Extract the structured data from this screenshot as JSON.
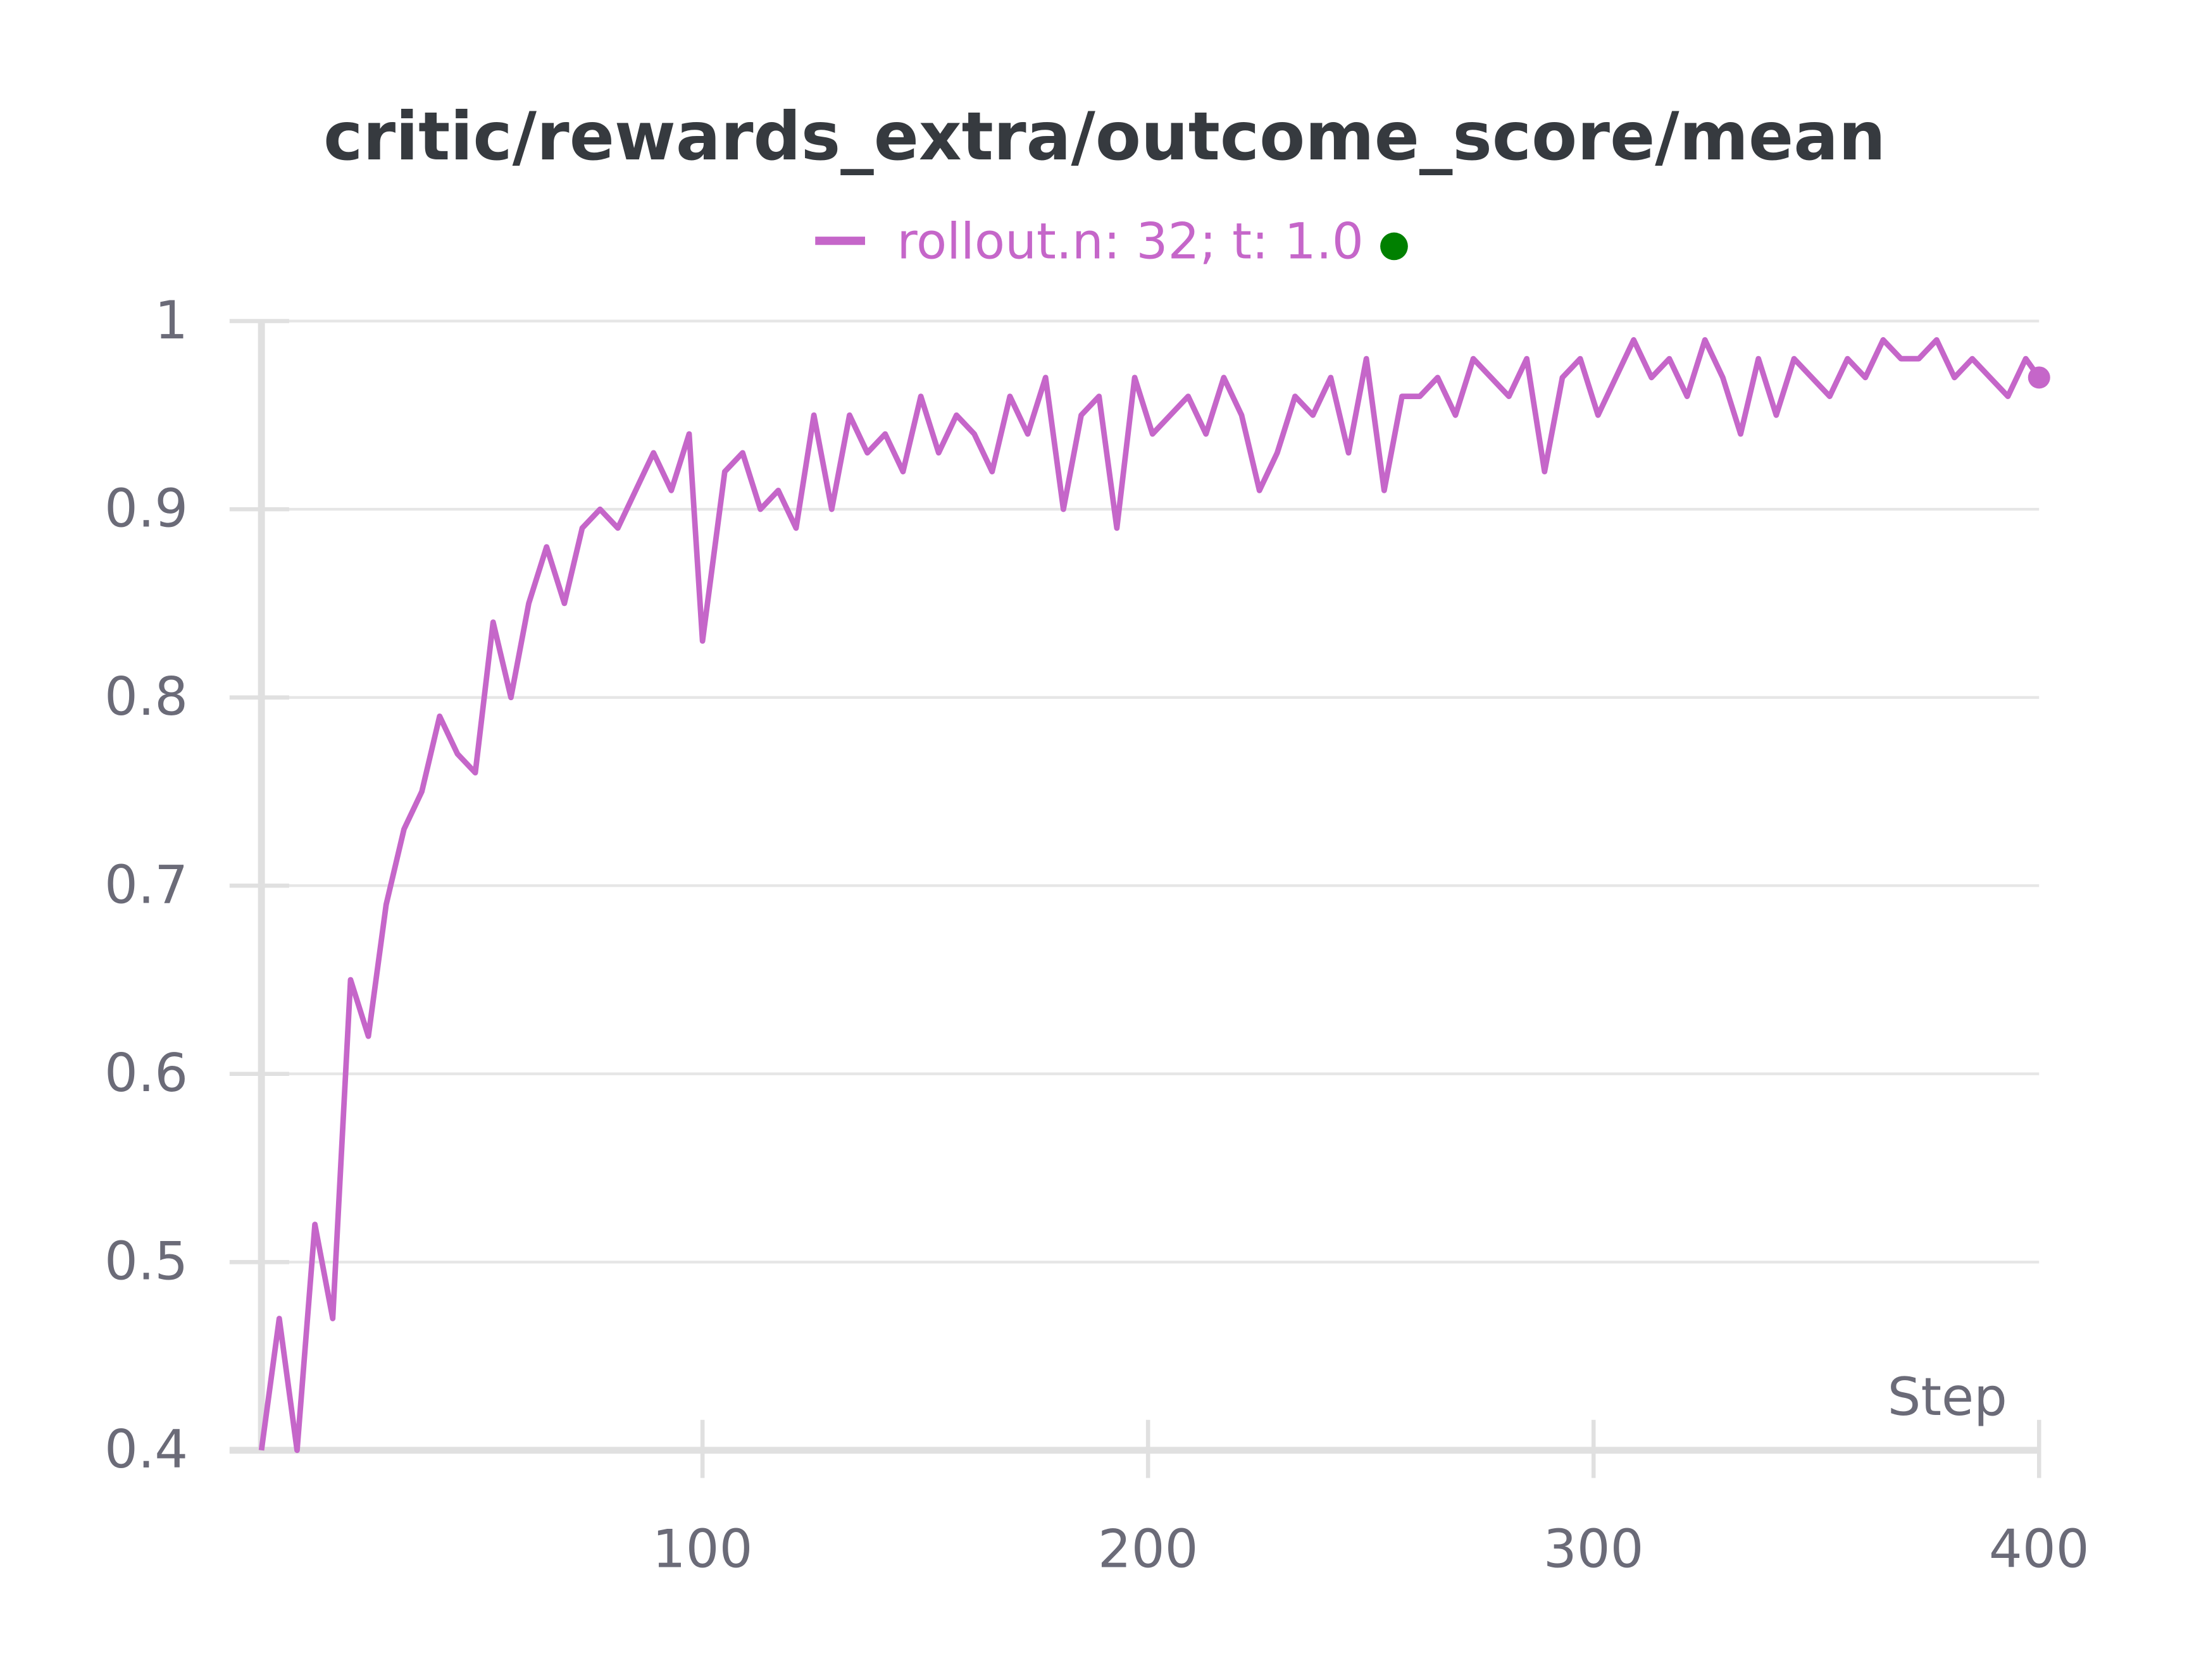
{
  "chart_data": {
    "type": "line",
    "title": "critic/rewards_extra/outcome_score/mean",
    "xlabel": "Step",
    "x": [
      1,
      5,
      9,
      13,
      17,
      21,
      25,
      29,
      33,
      37,
      41,
      45,
      49,
      53,
      57,
      61,
      65,
      69,
      73,
      77,
      81,
      85,
      89,
      93,
      97,
      100,
      105,
      109,
      113,
      117,
      121,
      125,
      129,
      133,
      137,
      141,
      145,
      149,
      153,
      157,
      161,
      165,
      169,
      173,
      177,
      181,
      185,
      189,
      193,
      197,
      201,
      205,
      209,
      213,
      217,
      221,
      225,
      229,
      233,
      237,
      241,
      245,
      249,
      253,
      257,
      261,
      265,
      269,
      273,
      277,
      281,
      285,
      289,
      293,
      297,
      301,
      305,
      309,
      313,
      317,
      321,
      325,
      329,
      333,
      337,
      341,
      345,
      349,
      353,
      357,
      361,
      365,
      369,
      373,
      377,
      381,
      385,
      389,
      393,
      397,
      400
    ],
    "series": [
      {
        "name": "rollout.n: 32; t: 1.0",
        "color": "#c566c9",
        "values": [
          0.4,
          0.47,
          0.4,
          0.52,
          0.47,
          0.65,
          0.62,
          0.69,
          0.73,
          0.75,
          0.79,
          0.77,
          0.76,
          0.84,
          0.8,
          0.85,
          0.88,
          0.85,
          0.89,
          0.9,
          0.89,
          0.91,
          0.93,
          0.91,
          0.94,
          0.83,
          0.92,
          0.93,
          0.9,
          0.91,
          0.89,
          0.95,
          0.9,
          0.95,
          0.93,
          0.94,
          0.92,
          0.96,
          0.93,
          0.95,
          0.94,
          0.92,
          0.96,
          0.94,
          0.97,
          0.9,
          0.95,
          0.96,
          0.89,
          0.97,
          0.94,
          0.95,
          0.96,
          0.94,
          0.97,
          0.95,
          0.91,
          0.93,
          0.96,
          0.95,
          0.97,
          0.93,
          0.98,
          0.91,
          0.96,
          0.96,
          0.97,
          0.95,
          0.98,
          0.97,
          0.96,
          0.98,
          0.92,
          0.97,
          0.98,
          0.95,
          0.97,
          0.99,
          0.97,
          0.98,
          0.96,
          0.99,
          0.97,
          0.94,
          0.98,
          0.95,
          0.98,
          0.97,
          0.96,
          0.98,
          0.97,
          0.99,
          0.98,
          0.98,
          0.99,
          0.97,
          0.98,
          0.97,
          0.96,
          0.98,
          0.97
        ]
      }
    ],
    "xlim": [
      1,
      400
    ],
    "xticks": [
      100,
      200,
      300,
      400
    ],
    "ylim": [
      0.4,
      1
    ],
    "yticks": [
      0.4,
      0.5,
      0.6,
      0.7,
      0.8,
      0.9,
      1
    ],
    "grid": true,
    "status_color": "#008000"
  }
}
